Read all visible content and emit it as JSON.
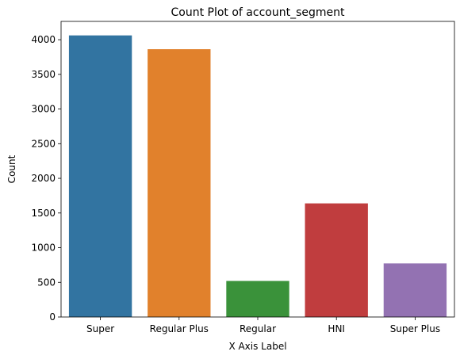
{
  "chart_data": {
    "type": "bar",
    "title": "Count Plot of account_segment",
    "xlabel": "X Axis Label",
    "ylabel": "Count",
    "categories": [
      "Super",
      "Regular Plus",
      "Regular",
      "HNI",
      "Super Plus"
    ],
    "values": [
      4062,
      3863,
      520,
      1639,
      773
    ],
    "colors": [
      "#3274a1",
      "#e1812c",
      "#3a923a",
      "#c03d3e",
      "#9372b2"
    ],
    "ylim": [
      0,
      4264
    ],
    "yticks": [
      0,
      500,
      1000,
      1500,
      2000,
      2500,
      3000,
      3500,
      4000
    ],
    "grid": false,
    "legend": "none"
  }
}
